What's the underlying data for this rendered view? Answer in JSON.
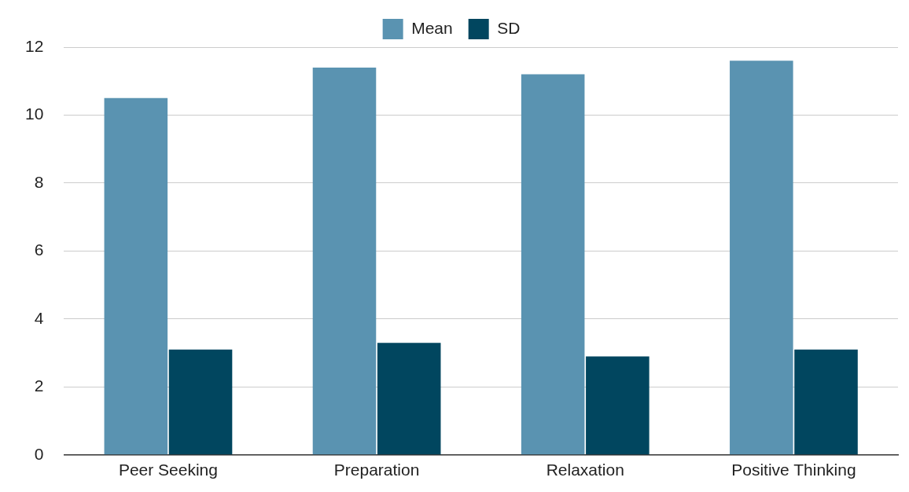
{
  "chart_data": {
    "type": "bar",
    "categories": [
      "Peer Seeking",
      "Preparation",
      "Relaxation",
      "Positive Thinking"
    ],
    "series": [
      {
        "name": "Mean",
        "color": "#5a93b1",
        "values": [
          10.5,
          11.4,
          11.2,
          11.6
        ]
      },
      {
        "name": "SD",
        "color": "#01465f",
        "values": [
          3.1,
          3.3,
          2.9,
          3.1
        ]
      }
    ],
    "ylim": [
      0,
      12
    ],
    "yticks": [
      0,
      2,
      4,
      6,
      8,
      10,
      12
    ],
    "grid": "y",
    "legend": "top"
  }
}
